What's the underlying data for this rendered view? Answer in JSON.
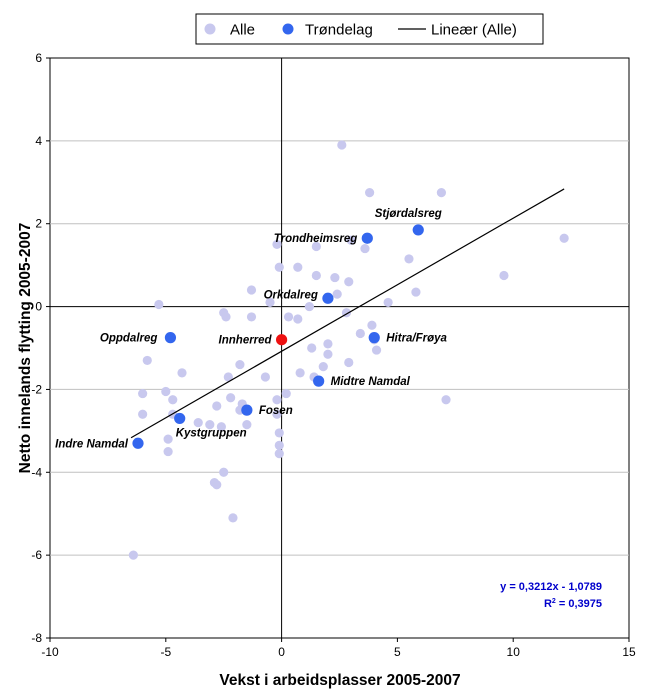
{
  "chart_data": {
    "type": "scatter",
    "xlabel": "Vekst i arbeidsplasser 2005-2007",
    "ylabel": "Netto innelands flytting 2005-2007",
    "xlim": [
      -10,
      15
    ],
    "ylim": [
      -8,
      6
    ],
    "xticks": [
      "-10",
      "-5",
      "0",
      "5",
      "10",
      "15"
    ],
    "yticks": [
      "-8",
      "-6",
      "-4",
      "-2",
      "0",
      "2",
      "4",
      "6"
    ],
    "grid": "horizontal",
    "legend_position": "top",
    "legend": {
      "alle": "Alle",
      "trondelag": "Trøndelag",
      "linear": "Lineær (Alle)"
    },
    "trendline": {
      "slope": 0.3212,
      "intercept": -1.0789,
      "x_range": [
        -6.5,
        12.2
      ],
      "equation": "y = 0,3212x - 1,0789",
      "r2_prefix": "R",
      "r2_sup": "2",
      "r2_value": " = 0,3975"
    },
    "colors": {
      "alle": "#c8c8ee",
      "trondelag": "#3366ee",
      "innherred": "#ee1111",
      "trendline": "#000000",
      "grid": "#c0c0c0",
      "equation": "#0000cc"
    },
    "series": [
      {
        "name": "Alle",
        "points": [
          [
            2.6,
            3.9
          ],
          [
            3.8,
            2.75
          ],
          [
            6.9,
            2.75
          ],
          [
            12.2,
            1.65
          ],
          [
            9.6,
            0.75
          ],
          [
            5.5,
            1.15
          ],
          [
            5.8,
            0.35
          ],
          [
            4.6,
            0.1
          ],
          [
            3.0,
            1.6
          ],
          [
            3.6,
            1.4
          ],
          [
            1.5,
            1.45
          ],
          [
            -0.2,
            1.5
          ],
          [
            -0.1,
            0.95
          ],
          [
            0.7,
            0.95
          ],
          [
            1.5,
            0.75
          ],
          [
            2.3,
            0.7
          ],
          [
            2.9,
            0.6
          ],
          [
            2.4,
            0.3
          ],
          [
            1.2,
            0.0
          ],
          [
            -1.3,
            0.4
          ],
          [
            -0.5,
            0.1
          ],
          [
            -5.3,
            0.05
          ],
          [
            -2.5,
            -0.15
          ],
          [
            -2.4,
            -0.25
          ],
          [
            -1.3,
            -0.25
          ],
          [
            0.3,
            -0.25
          ],
          [
            0.7,
            -0.3
          ],
          [
            2.8,
            -0.15
          ],
          [
            3.4,
            -0.65
          ],
          [
            3.9,
            -0.45
          ],
          [
            4.0,
            -0.8
          ],
          [
            4.1,
            -1.05
          ],
          [
            -5.8,
            -1.3
          ],
          [
            -4.3,
            -1.6
          ],
          [
            1.3,
            -1.0
          ],
          [
            2.0,
            -0.9
          ],
          [
            2.0,
            -1.15
          ],
          [
            1.8,
            -1.45
          ],
          [
            2.9,
            -1.35
          ],
          [
            0.8,
            -1.6
          ],
          [
            1.4,
            -1.7
          ],
          [
            -1.8,
            -1.4
          ],
          [
            -0.7,
            -1.7
          ],
          [
            -2.3,
            -1.7
          ],
          [
            -6.0,
            -2.1
          ],
          [
            -5.0,
            -2.05
          ],
          [
            -4.7,
            -2.25
          ],
          [
            -0.2,
            -2.25
          ],
          [
            0.2,
            -2.1
          ],
          [
            7.1,
            -2.25
          ],
          [
            -1.7,
            -2.35
          ],
          [
            -2.2,
            -2.2
          ],
          [
            -2.8,
            -2.4
          ],
          [
            -6.0,
            -2.6
          ],
          [
            -4.7,
            -2.6
          ],
          [
            -1.8,
            -2.5
          ],
          [
            -1.5,
            -2.85
          ],
          [
            -0.2,
            -2.6
          ],
          [
            -3.6,
            -2.8
          ],
          [
            -3.1,
            -2.85
          ],
          [
            -2.6,
            -2.9
          ],
          [
            -4.9,
            -3.2
          ],
          [
            -0.1,
            -3.05
          ],
          [
            -0.1,
            -3.35
          ],
          [
            -4.9,
            -3.5
          ],
          [
            -0.1,
            -3.55
          ],
          [
            -2.5,
            -4.0
          ],
          [
            -2.9,
            -4.25
          ],
          [
            -2.8,
            -4.3
          ],
          [
            -2.1,
            -5.1
          ],
          [
            -6.4,
            -6.0
          ]
        ]
      },
      {
        "name": "Trøndelag",
        "points": [
          {
            "x": 5.9,
            "y": 1.85,
            "label": "Stjørdalsreg"
          },
          {
            "x": 3.7,
            "y": 1.65,
            "label": "Trondheimsreg"
          },
          {
            "x": 2.0,
            "y": 0.2,
            "label": "Orkdalreg"
          },
          {
            "x": -4.8,
            "y": -0.75,
            "label": "Oppdalreg"
          },
          {
            "x": 4.0,
            "y": -0.75,
            "label": "Hitra/Frøya"
          },
          {
            "x": 1.6,
            "y": -1.8,
            "label": "Midtre Namdal"
          },
          {
            "x": -1.5,
            "y": -2.5,
            "label": "Fosen"
          },
          {
            "x": -4.4,
            "y": -2.7,
            "label": "Kystgruppen"
          },
          {
            "x": -6.2,
            "y": -3.3,
            "label": "Indre Namdal"
          }
        ]
      },
      {
        "name": "Innherred",
        "points": [
          {
            "x": 0.0,
            "y": -0.8,
            "label": "Innherred"
          }
        ]
      }
    ]
  }
}
